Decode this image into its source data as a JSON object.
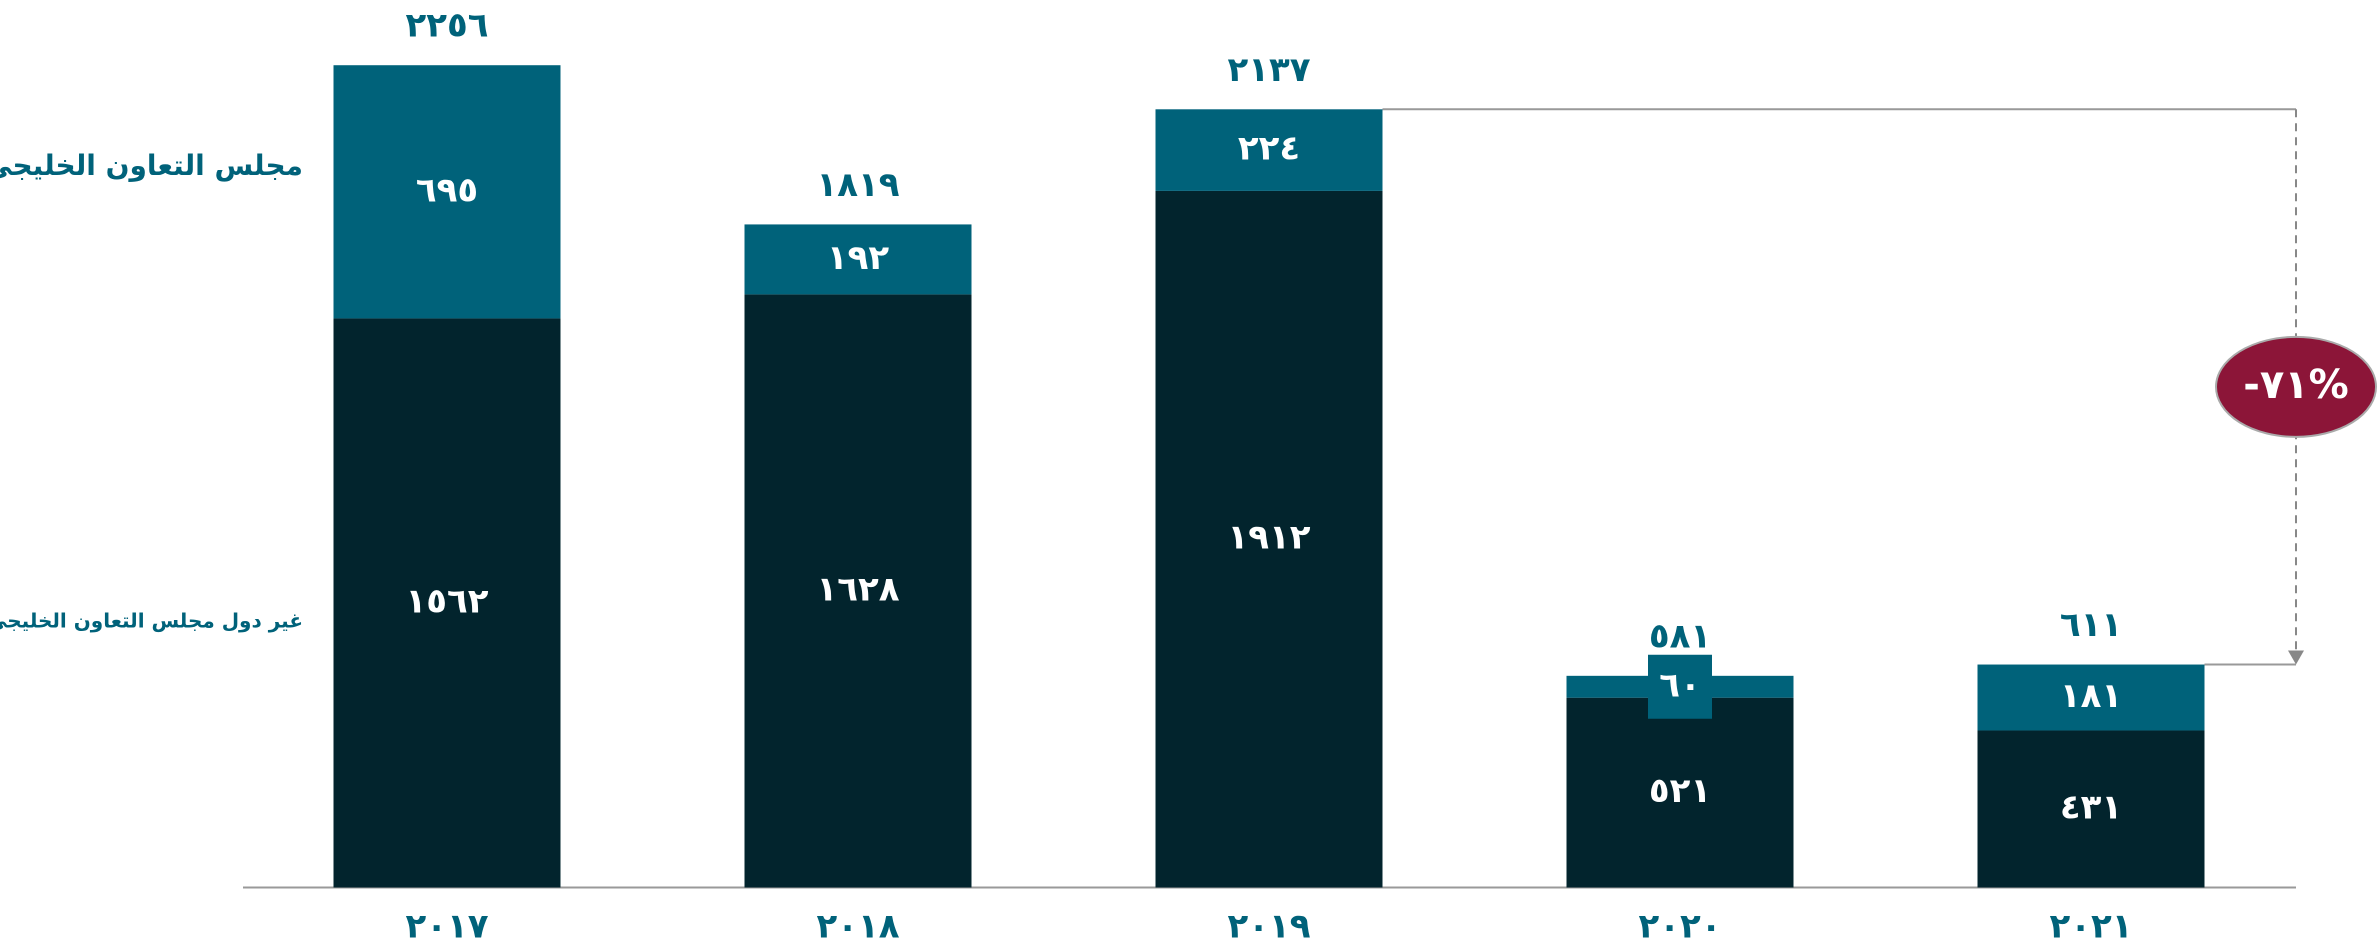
{
  "chart_data": {
    "type": "stacked_bar",
    "categories": [
      "٢٠١٧",
      "٢٠١٨",
      "٢٠١٩",
      "٢٠٢٠",
      "٢٠٢١"
    ],
    "series": [
      {
        "name": "غير دول مجلس التعاون الخليجي",
        "color": "#02242d",
        "values": [
          1562,
          1628,
          1912,
          521,
          431
        ],
        "value_labels": [
          "١٥٦٢",
          "١٦٢٨",
          "١٩١٢",
          "٥٢١",
          "٤٣١"
        ]
      },
      {
        "name": "مجلس التعاون الخليجي",
        "color": "#00627a",
        "values": [
          695,
          192,
          224,
          60,
          181
        ],
        "value_labels": [
          "٦٩٥",
          "١٩٢",
          "٢٢٤",
          "٦٠",
          "١٨١"
        ]
      }
    ],
    "totals": {
      "values": [
        2256,
        1819,
        2137,
        581,
        611
      ],
      "value_labels": [
        "٢٢٥٦",
        "١٨١٩",
        "٢١٣٧",
        "٥٨١",
        "٦١١"
      ]
    },
    "annotation": {
      "text": "-٧١%",
      "color": "#8c1538"
    },
    "ylim": [
      0,
      2436
    ]
  }
}
